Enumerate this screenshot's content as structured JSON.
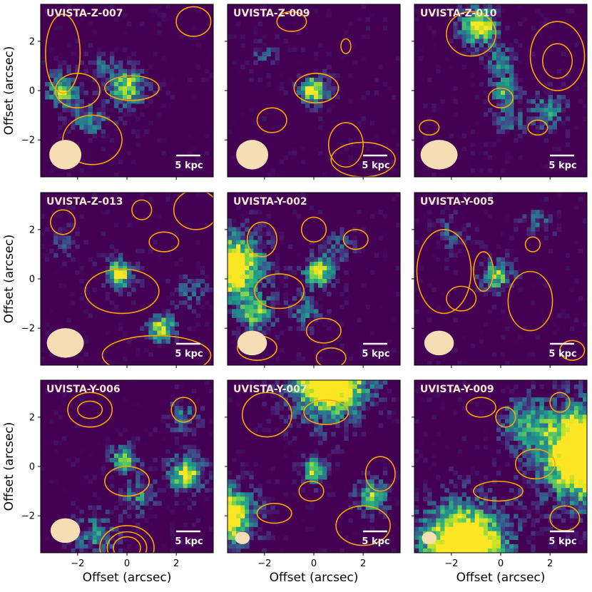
{
  "chart_data": {
    "type": "heatmap",
    "grid": {
      "rows": 3,
      "cols": 3
    },
    "xlim": [
      -3.5,
      3.5
    ],
    "ylim": [
      -3.5,
      3.5
    ],
    "xticks": [
      -2,
      0,
      2
    ],
    "yticks": [
      2,
      0,
      -2
    ],
    "tick_labels": {
      "-2": "−2",
      "0": "0",
      "2": "2"
    },
    "xlabel": "Offset (arcsec)",
    "ylabel": "Offset (arcsec)",
    "scalebar_label": "5 kpc",
    "colormap": "viridis",
    "contour_color": "#FFA500",
    "beam_color": "#F5DEB3",
    "background_color": "#440154",
    "panels": [
      {
        "label": "UVISTA-Z-007",
        "beam": {
          "x": -2.5,
          "y": -2.6,
          "w": 1.3,
          "h": 1.2
        },
        "sources": [
          {
            "x": -2.6,
            "y": 0.0,
            "amp": 0.9,
            "s": 0.45
          },
          {
            "x": 0.0,
            "y": 0.1,
            "amp": 1.0,
            "s": 0.5
          },
          {
            "x": -1.5,
            "y": -1.2,
            "amp": 0.6,
            "s": 0.5
          },
          {
            "x": -1.0,
            "y": 0.9,
            "amp": 0.4,
            "s": 0.4
          }
        ],
        "contours": [
          {
            "cx": 0.2,
            "cy": 0.1,
            "rx": 1.1,
            "ry": 0.5
          },
          {
            "cx": -2.0,
            "cy": 0.0,
            "rx": 0.9,
            "ry": 0.7
          },
          {
            "cx": -1.4,
            "cy": -2.0,
            "rx": 1.2,
            "ry": 1.0
          },
          {
            "cx": -2.6,
            "cy": 1.5,
            "rx": 0.7,
            "ry": 1.6
          },
          {
            "cx": 2.7,
            "cy": 2.8,
            "rx": 0.7,
            "ry": 0.6
          }
        ]
      },
      {
        "label": "UVISTA-Z-009",
        "beam": {
          "x": -2.5,
          "y": -2.6,
          "w": 1.3,
          "h": 1.2
        },
        "sources": [
          {
            "x": 0.0,
            "y": 0.0,
            "amp": 1.15,
            "s": 0.4
          },
          {
            "x": -2.0,
            "y": 1.5,
            "amp": 0.35,
            "s": 0.35
          }
        ],
        "contours": [
          {
            "cx": 0.1,
            "cy": 0.1,
            "rx": 0.9,
            "ry": 0.6
          },
          {
            "cx": -1.7,
            "cy": -1.2,
            "rx": 0.6,
            "ry": 0.5
          },
          {
            "cx": 2.0,
            "cy": -2.8,
            "rx": 1.3,
            "ry": 0.7
          },
          {
            "cx": 1.3,
            "cy": -2.2,
            "rx": 0.7,
            "ry": 0.9
          },
          {
            "cx": -0.9,
            "cy": 2.8,
            "rx": 0.6,
            "ry": 0.4
          },
          {
            "cx": 1.3,
            "cy": 1.8,
            "rx": 0.2,
            "ry": 0.3
          }
        ]
      },
      {
        "label": "UVISTA-Z-010",
        "beam": {
          "x": -2.5,
          "y": -2.6,
          "w": 1.5,
          "h": 1.2
        },
        "sources": [
          {
            "x": -0.9,
            "y": 2.6,
            "amp": 1.25,
            "s": 0.5
          },
          {
            "x": 0.0,
            "y": 1.2,
            "amp": 0.6,
            "s": 0.4
          },
          {
            "x": 0.2,
            "y": 0.0,
            "amp": 0.75,
            "s": 0.4
          },
          {
            "x": 0.3,
            "y": -1.3,
            "amp": 0.5,
            "s": 0.45
          },
          {
            "x": 1.9,
            "y": -0.8,
            "amp": 0.6,
            "s": 0.5
          }
        ],
        "contours": [
          {
            "cx": -1.2,
            "cy": 2.3,
            "rx": 1.0,
            "ry": 0.9
          },
          {
            "cx": 2.3,
            "cy": 1.4,
            "rx": 1.1,
            "ry": 1.4
          },
          {
            "cx": 2.3,
            "cy": 1.2,
            "rx": 0.6,
            "ry": 0.7
          },
          {
            "cx": 0.0,
            "cy": -0.3,
            "rx": 0.5,
            "ry": 0.4
          },
          {
            "cx": -2.9,
            "cy": -1.5,
            "rx": 0.4,
            "ry": 0.3
          },
          {
            "cx": 1.5,
            "cy": -1.5,
            "rx": 0.4,
            "ry": 0.3
          }
        ]
      },
      {
        "label": "UVISTA-Z-013",
        "beam": {
          "x": -2.5,
          "y": -2.6,
          "w": 1.5,
          "h": 1.2
        },
        "sources": [
          {
            "x": -0.3,
            "y": 0.2,
            "amp": 1.1,
            "s": 0.4
          },
          {
            "x": 1.4,
            "y": -2.0,
            "amp": 1.0,
            "s": 0.4
          },
          {
            "x": -2.6,
            "y": 1.5,
            "amp": 0.4,
            "s": 0.4
          },
          {
            "x": 2.6,
            "y": -0.5,
            "amp": 0.4,
            "s": 0.45
          }
        ],
        "contours": [
          {
            "cx": -0.2,
            "cy": -0.5,
            "rx": 1.5,
            "ry": 0.9
          },
          {
            "cx": -2.6,
            "cy": 2.3,
            "rx": 0.5,
            "ry": 0.5
          },
          {
            "cx": 1.5,
            "cy": 1.5,
            "rx": 0.6,
            "ry": 0.4
          },
          {
            "cx": 2.8,
            "cy": 2.8,
            "rx": 0.9,
            "ry": 0.8
          },
          {
            "cx": 1.2,
            "cy": -3.1,
            "rx": 2.2,
            "ry": 0.8
          },
          {
            "cx": 0.6,
            "cy": 2.8,
            "rx": 0.4,
            "ry": 0.4
          }
        ]
      },
      {
        "label": "UVISTA-Y-002",
        "beam": {
          "x": -2.5,
          "y": -2.6,
          "w": 1.2,
          "h": 1.0
        },
        "sources": [
          {
            "x": -3.4,
            "y": 0.5,
            "amp": 1.4,
            "s": 0.9
          },
          {
            "x": -2.4,
            "y": -1.4,
            "amp": 0.8,
            "s": 0.5
          },
          {
            "x": 0.2,
            "y": 0.3,
            "amp": 1.0,
            "s": 0.45
          },
          {
            "x": -0.3,
            "y": -1.3,
            "amp": 0.5,
            "s": 0.45
          },
          {
            "x": 1.0,
            "y": 1.3,
            "amp": 0.45,
            "s": 0.4
          }
        ],
        "contours": [
          {
            "cx": -2.1,
            "cy": 1.6,
            "rx": 0.6,
            "ry": 0.7
          },
          {
            "cx": -1.4,
            "cy": -0.5,
            "rx": 1.0,
            "ry": 0.7
          },
          {
            "cx": 0.4,
            "cy": -2.1,
            "rx": 0.7,
            "ry": 0.5
          },
          {
            "cx": -2.3,
            "cy": -2.8,
            "rx": 0.8,
            "ry": 0.5
          },
          {
            "cx": 0.7,
            "cy": -3.2,
            "rx": 0.6,
            "ry": 0.4
          },
          {
            "cx": 1.7,
            "cy": 1.6,
            "rx": 0.5,
            "ry": 0.4
          },
          {
            "cx": 0.0,
            "cy": 2.0,
            "rx": 0.5,
            "ry": 0.5
          }
        ]
      },
      {
        "label": "UVISTA-Y-005",
        "beam": {
          "x": -2.5,
          "y": -2.6,
          "w": 1.2,
          "h": 1.0
        },
        "sources": [
          {
            "x": -0.2,
            "y": 0.1,
            "amp": 0.85,
            "s": 0.45
          },
          {
            "x": 1.5,
            "y": 2.3,
            "amp": 0.45,
            "s": 0.4
          },
          {
            "x": -2.0,
            "y": 1.8,
            "amp": 0.4,
            "s": 0.45
          }
        ],
        "contours": [
          {
            "cx": -2.3,
            "cy": 0.3,
            "rx": 1.1,
            "ry": 1.7
          },
          {
            "cx": -1.6,
            "cy": -0.8,
            "rx": 0.6,
            "ry": 0.5
          },
          {
            "cx": 1.2,
            "cy": -0.9,
            "rx": 0.9,
            "ry": 1.2
          },
          {
            "cx": 2.9,
            "cy": -2.9,
            "rx": 0.5,
            "ry": 0.4
          },
          {
            "cx": 1.3,
            "cy": 1.4,
            "rx": 0.3,
            "ry": 0.3
          },
          {
            "cx": -0.7,
            "cy": 0.3,
            "rx": 0.4,
            "ry": 0.8
          }
        ]
      },
      {
        "label": "UVISTA-Y-006",
        "beam": {
          "x": -2.5,
          "y": -2.6,
          "w": 1.2,
          "h": 1.0
        },
        "sources": [
          {
            "x": 2.4,
            "y": -0.3,
            "amp": 1.05,
            "s": 0.5
          },
          {
            "x": -0.1,
            "y": 0.3,
            "amp": 0.85,
            "s": 0.4
          },
          {
            "x": 0.5,
            "y": -1.2,
            "amp": 0.55,
            "s": 0.45
          },
          {
            "x": 2.2,
            "y": 2.0,
            "amp": 0.5,
            "s": 0.45
          },
          {
            "x": -1.3,
            "y": -2.8,
            "amp": 0.6,
            "s": 0.6
          }
        ],
        "contours": [
          {
            "cx": -1.5,
            "cy": 2.3,
            "rx": 0.9,
            "ry": 0.7
          },
          {
            "cx": -1.5,
            "cy": 2.3,
            "rx": 0.5,
            "ry": 0.35
          },
          {
            "cx": 0.0,
            "cy": -3.3,
            "rx": 1.1,
            "ry": 0.9
          },
          {
            "cx": 0.0,
            "cy": -3.3,
            "rx": 0.8,
            "ry": 0.65
          },
          {
            "cx": 0.0,
            "cy": -3.3,
            "rx": 0.55,
            "ry": 0.45
          },
          {
            "cx": 0.0,
            "cy": -0.6,
            "rx": 0.9,
            "ry": 0.6
          },
          {
            "cx": 2.3,
            "cy": 2.3,
            "rx": 0.5,
            "ry": 0.5
          }
        ]
      },
      {
        "label": "UVISTA-Y-007",
        "beam": {
          "x": -2.9,
          "y": -2.9,
          "w": 0.6,
          "h": 0.5
        },
        "sources": [
          {
            "x": 0.6,
            "y": 3.6,
            "amp": 1.6,
            "s": 1.1
          },
          {
            "x": -3.6,
            "y": -2.0,
            "amp": 1.4,
            "s": 0.8
          },
          {
            "x": 0.0,
            "y": -0.2,
            "amp": 1.0,
            "s": 0.35
          },
          {
            "x": 2.4,
            "y": -1.2,
            "amp": 0.9,
            "s": 0.45
          }
        ],
        "contours": [
          {
            "cx": -1.9,
            "cy": 2.1,
            "rx": 1.0,
            "ry": 0.9
          },
          {
            "cx": 0.5,
            "cy": 2.2,
            "rx": 0.9,
            "ry": 0.5
          },
          {
            "cx": 2.7,
            "cy": -0.3,
            "rx": 0.6,
            "ry": 0.7
          },
          {
            "cx": 2.0,
            "cy": -2.4,
            "rx": 1.1,
            "ry": 0.8
          },
          {
            "cx": -1.6,
            "cy": -1.9,
            "rx": 0.7,
            "ry": 0.4
          },
          {
            "cx": -0.1,
            "cy": -1.0,
            "rx": 0.5,
            "ry": 0.4
          }
        ]
      },
      {
        "label": "UVISTA-Y-009",
        "beam": {
          "x": -2.9,
          "y": -2.9,
          "w": 0.6,
          "h": 0.5
        },
        "sources": [
          {
            "x": 3.6,
            "y": 0.5,
            "amp": 1.8,
            "s": 1.3
          },
          {
            "x": -1.5,
            "y": -3.3,
            "amp": 1.6,
            "s": 1.2
          },
          {
            "x": 1.0,
            "y": 1.8,
            "amp": 0.6,
            "s": 0.7
          }
        ],
        "contours": [
          {
            "cx": -0.1,
            "cy": -1.0,
            "rx": 1.0,
            "ry": 0.4
          },
          {
            "cx": 1.4,
            "cy": 0.1,
            "rx": 0.8,
            "ry": 0.6
          },
          {
            "cx": -0.8,
            "cy": 2.4,
            "rx": 0.6,
            "ry": 0.4
          },
          {
            "cx": 2.6,
            "cy": -2.1,
            "rx": 0.6,
            "ry": 0.5
          },
          {
            "cx": 0.2,
            "cy": 2.0,
            "rx": 0.4,
            "ry": 0.4
          },
          {
            "cx": 2.4,
            "cy": 2.6,
            "rx": 0.4,
            "ry": 0.4
          }
        ]
      }
    ]
  }
}
